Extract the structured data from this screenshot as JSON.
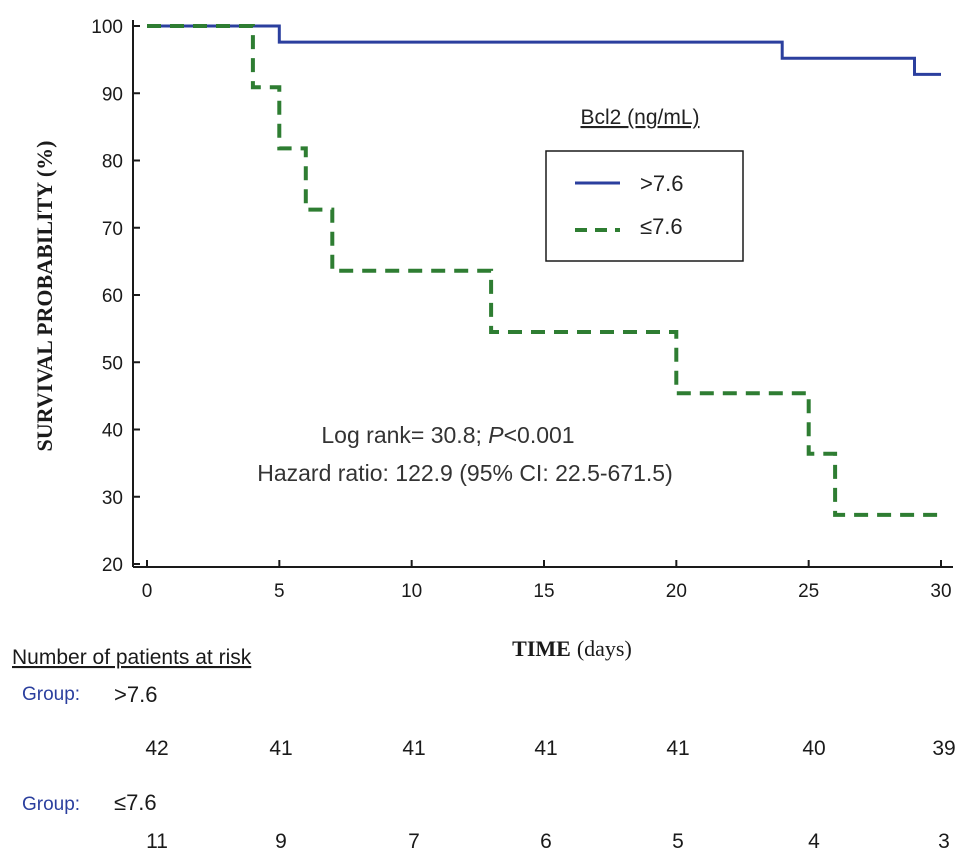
{
  "chart_data": {
    "type": "line",
    "subtype": "kaplan-meier step",
    "xlabel_bold": "TIME",
    "xlabel_rest": "(days)",
    "ylabel": "SURVIVAL PROBABILITY (%)",
    "xlim": [
      0,
      30
    ],
    "ylim": [
      20,
      100
    ],
    "x_ticks": [
      0,
      5,
      10,
      15,
      20,
      25,
      30
    ],
    "y_ticks": [
      20,
      30,
      40,
      50,
      60,
      70,
      80,
      90,
      100
    ],
    "grid": false,
    "legend": {
      "title": "Bcl2 (ng/mL)",
      "placement": "top-right",
      "entries": [
        ">7.6",
        "≤7.6"
      ]
    },
    "series": [
      {
        "name": ">7.6",
        "color": "#2b3f9e",
        "style": "solid",
        "points": [
          [
            0,
            100
          ],
          [
            5,
            100
          ],
          [
            5,
            97.6
          ],
          [
            24,
            97.6
          ],
          [
            24,
            95.2
          ],
          [
            29,
            95.2
          ],
          [
            29,
            92.8
          ],
          [
            30,
            92.8
          ]
        ]
      },
      {
        "name": "≤7.6",
        "color": "#2e7d32",
        "style": "dashed",
        "points": [
          [
            0,
            100
          ],
          [
            4,
            100
          ],
          [
            4,
            90.9
          ],
          [
            5,
            90.9
          ],
          [
            5,
            81.8
          ],
          [
            6,
            81.8
          ],
          [
            6,
            72.7
          ],
          [
            7,
            72.7
          ],
          [
            7,
            63.6
          ],
          [
            13,
            63.6
          ],
          [
            13,
            54.5
          ],
          [
            20,
            54.5
          ],
          [
            20,
            45.4
          ],
          [
            25,
            45.4
          ],
          [
            25,
            36.4
          ],
          [
            26,
            36.4
          ],
          [
            26,
            27.3
          ],
          [
            30,
            27.3
          ]
        ]
      }
    ],
    "annotations": {
      "line1_prefix": "Log rank= 30.8; ",
      "line1_italic": "P",
      "line1_suffix": "<0.001",
      "line2": "Hazard ratio: 122.9 (95% CI: 22.5-671.5)"
    },
    "risk_table": {
      "header": "Number of patients at risk",
      "group_label": "Group:",
      "groups": [
        {
          "name": ">7.6",
          "counts": [
            42,
            41,
            41,
            41,
            41,
            40,
            39
          ]
        },
        {
          "name": "≤7.6",
          "counts": [
            11,
            9,
            7,
            6,
            5,
            4,
            3
          ]
        }
      ]
    }
  }
}
